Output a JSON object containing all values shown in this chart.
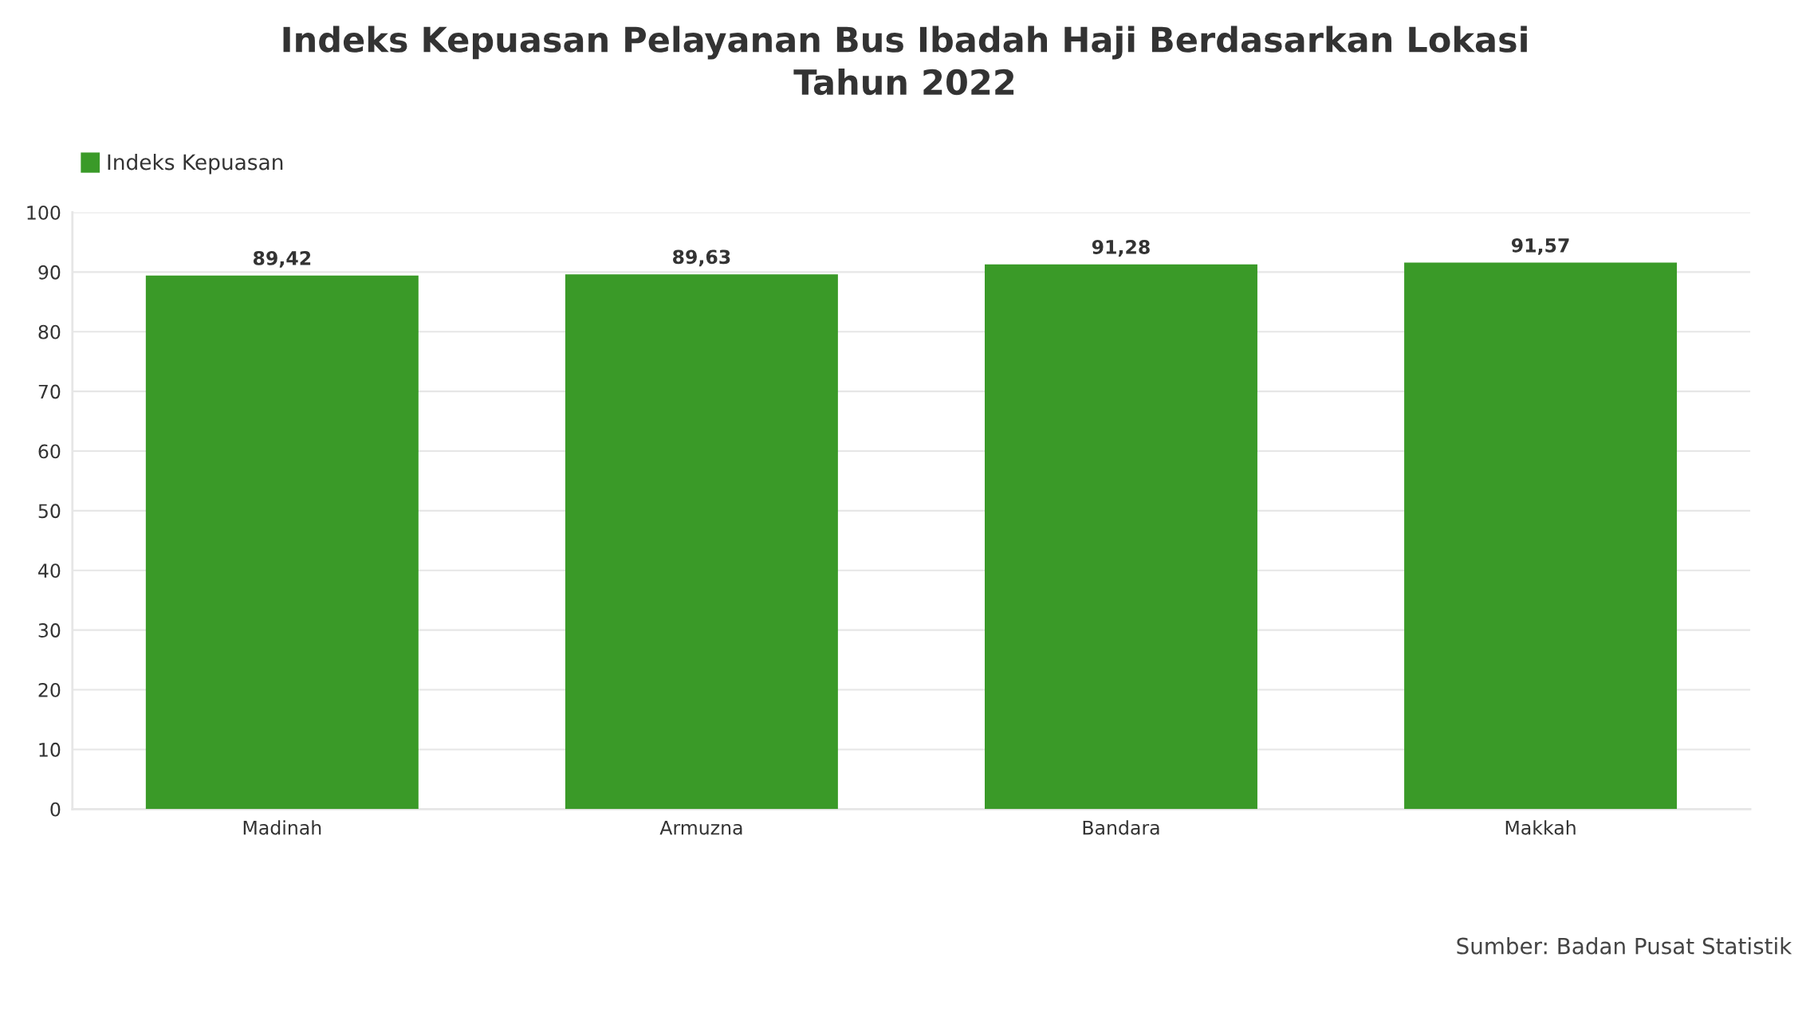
{
  "chart_data": {
    "type": "bar",
    "title": "Indeks Kepuasan Pelayanan Bus Ibadah Haji Berdasarkan Lokasi\nTahun 2022",
    "categories": [
      "Madinah",
      "Armuzna",
      "Bandara",
      "Makkah"
    ],
    "series": [
      {
        "name": "Indeks Kepuasan",
        "color": "#3a9a28",
        "values": [
          89.42,
          89.63,
          91.28,
          91.57
        ],
        "value_labels": [
          "89,42",
          "89,63",
          "91,28",
          "91,57"
        ]
      }
    ],
    "ylim": [
      0,
      100
    ],
    "yticks": [
      0,
      10,
      20,
      30,
      40,
      50,
      60,
      70,
      80,
      90,
      100
    ],
    "grid": "y",
    "legend": "top left",
    "annotations": [
      "Sumber: Badan Pusat Statistik"
    ]
  }
}
